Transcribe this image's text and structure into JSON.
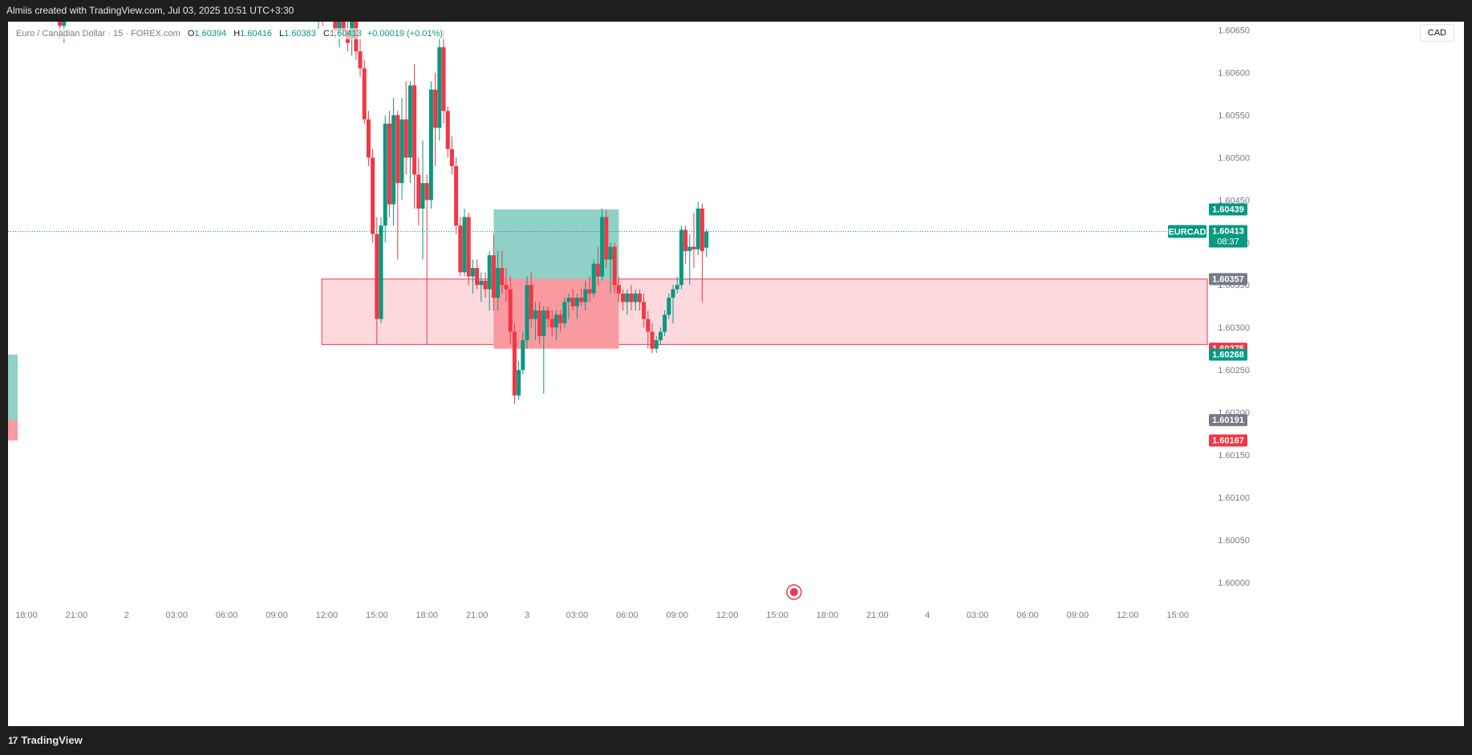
{
  "header": {
    "attribution": "Almiis created with TradingView.com, Jul 03, 2025 10:51 UTC+3:30"
  },
  "footer": {
    "brand": "TradingView",
    "logo_mark": "17"
  },
  "legend": {
    "symbol": "Euro / Canadian Dollar · 15 · FOREX.com",
    "open_label": "O",
    "open": "1.60394",
    "high_label": "H",
    "high": "1.60416",
    "low_label": "L",
    "low": "1.60383",
    "close_label": "C",
    "close": "1.60413",
    "change": "+0.00019 (+0.01%)"
  },
  "currency_button": "CAD",
  "colors": {
    "up": "#089981",
    "down": "#f23645",
    "grid_text": "#787b86",
    "zone_fill": "#fcd9dc",
    "zone_border": "#f23645",
    "profit_fill": "#8fd1c6",
    "loss_fill": "#f99aa1"
  },
  "chart_data": {
    "type": "candlestick",
    "symbol": "EURCAD",
    "timeframe": "15",
    "ylim": [
      1.5998,
      1.6066
    ],
    "y_ticks": [
      "1.60000",
      "1.60050",
      "1.60100",
      "1.60150",
      "1.60200",
      "1.60250",
      "1.60300",
      "1.60350",
      "1.60400",
      "1.60450",
      "1.60500",
      "1.60550",
      "1.60600",
      "1.60650"
    ],
    "x_ticks": [
      {
        "label": "18:00",
        "day": 1,
        "hour": 18
      },
      {
        "label": "21:00",
        "day": 1,
        "hour": 21
      },
      {
        "label": "2",
        "day": 2,
        "hour": 0
      },
      {
        "label": "03:00",
        "day": 2,
        "hour": 3
      },
      {
        "label": "06:00",
        "day": 2,
        "hour": 6
      },
      {
        "label": "09:00",
        "day": 2,
        "hour": 9
      },
      {
        "label": "12:00",
        "day": 2,
        "hour": 12
      },
      {
        "label": "15:00",
        "day": 2,
        "hour": 15
      },
      {
        "label": "18:00",
        "day": 2,
        "hour": 18
      },
      {
        "label": "21:00",
        "day": 2,
        "hour": 21
      },
      {
        "label": "3",
        "day": 3,
        "hour": 0
      },
      {
        "label": "03:00",
        "day": 3,
        "hour": 3
      },
      {
        "label": "06:00",
        "day": 3,
        "hour": 6
      },
      {
        "label": "09:00",
        "day": 3,
        "hour": 9
      },
      {
        "label": "12:00",
        "day": 3,
        "hour": 12
      },
      {
        "label": "15:00",
        "day": 3,
        "hour": 15
      },
      {
        "label": "18:00",
        "day": 3,
        "hour": 18
      },
      {
        "label": "21:00",
        "day": 3,
        "hour": 21
      },
      {
        "label": "4",
        "day": 4,
        "hour": 0
      },
      {
        "label": "03:00",
        "day": 4,
        "hour": 3
      },
      {
        "label": "06:00",
        "day": 4,
        "hour": 6
      },
      {
        "label": "09:00",
        "day": 4,
        "hour": 9
      },
      {
        "label": "12:00",
        "day": 4,
        "hour": 12
      },
      {
        "label": "15:00",
        "day": 4,
        "hour": 15
      }
    ],
    "price_labels": [
      {
        "value": 1.60439,
        "text": "1.60439",
        "kind": "up"
      },
      {
        "value": 1.60413,
        "text": "1.60413",
        "kind": "current",
        "tag": "EURCAD",
        "countdown": "08:37"
      },
      {
        "value": 1.60357,
        "text": "1.60357",
        "kind": "neutral"
      },
      {
        "value": 1.60275,
        "text": "1.60275",
        "kind": "down"
      },
      {
        "value": 1.60268,
        "text": "1.60268",
        "kind": "up"
      },
      {
        "value": 1.60191,
        "text": "1.60191",
        "kind": "neutral"
      },
      {
        "value": 1.60167,
        "text": "1.60167",
        "kind": "down"
      }
    ],
    "current_price": 1.60413,
    "zone": {
      "start": {
        "day": 2,
        "hour": 11.7
      },
      "end": "right-edge",
      "top": 1.60357,
      "bottom": 1.6028
    },
    "position": {
      "start": {
        "day": 2,
        "hour": 22.0
      },
      "end": {
        "day": 3,
        "hour": 5.5
      },
      "entry": 1.60357,
      "target": 1.60439,
      "stop": 1.60275
    },
    "left_position_entry": 1.60191,
    "left_position_target": 1.60268,
    "left_position_stop": 1.60167,
    "event_marker": {
      "day": 3,
      "hour": 16.0
    },
    "candles": [
      {
        "day": 1,
        "hour": 20.0,
        "o": 1.6066,
        "h": 1.6067,
        "l": 1.6064,
        "c": 1.60655
      },
      {
        "day": 1,
        "hour": 20.25,
        "o": 1.60655,
        "h": 1.60665,
        "l": 1.60635,
        "c": 1.6066
      },
      {
        "day": 2,
        "hour": 11.5,
        "o": 1.6067,
        "h": 1.6069,
        "l": 1.6065,
        "c": 1.6068
      },
      {
        "day": 2,
        "hour": 11.75,
        "o": 1.6068,
        "h": 1.6069,
        "l": 1.60655,
        "c": 1.60665
      },
      {
        "day": 2,
        "hour": 12.5,
        "o": 1.60665,
        "h": 1.6068,
        "l": 1.6064,
        "c": 1.6065
      },
      {
        "day": 2,
        "hour": 12.75,
        "o": 1.6065,
        "h": 1.60675,
        "l": 1.6063,
        "c": 1.60665
      },
      {
        "day": 2,
        "hour": 13.0,
        "o": 1.60665,
        "h": 1.6069,
        "l": 1.6064,
        "c": 1.6065
      },
      {
        "day": 2,
        "hour": 13.25,
        "o": 1.6065,
        "h": 1.60665,
        "l": 1.60625,
        "c": 1.60635
      },
      {
        "day": 2,
        "hour": 13.5,
        "o": 1.6064,
        "h": 1.6069,
        "l": 1.6062,
        "c": 1.6067
      },
      {
        "day": 2,
        "hour": 13.75,
        "o": 1.6067,
        "h": 1.6068,
        "l": 1.60615,
        "c": 1.60625
      },
      {
        "day": 2,
        "hour": 14.0,
        "o": 1.60625,
        "h": 1.6064,
        "l": 1.60595,
        "c": 1.60605
      },
      {
        "day": 2,
        "hour": 14.25,
        "o": 1.60605,
        "h": 1.60615,
        "l": 1.6054,
        "c": 1.60545
      },
      {
        "day": 2,
        "hour": 14.5,
        "o": 1.60545,
        "h": 1.60555,
        "l": 1.6049,
        "c": 1.605
      },
      {
        "day": 2,
        "hour": 14.75,
        "o": 1.605,
        "h": 1.6051,
        "l": 1.604,
        "c": 1.6041
      },
      {
        "day": 2,
        "hour": 15.0,
        "o": 1.6041,
        "h": 1.6043,
        "l": 1.6028,
        "c": 1.6031
      },
      {
        "day": 2,
        "hour": 15.25,
        "o": 1.6031,
        "h": 1.6043,
        "l": 1.60305,
        "c": 1.6042
      },
      {
        "day": 2,
        "hour": 15.5,
        "o": 1.6042,
        "h": 1.6055,
        "l": 1.604,
        "c": 1.6054
      },
      {
        "day": 2,
        "hour": 15.75,
        "o": 1.6054,
        "h": 1.60555,
        "l": 1.6043,
        "c": 1.60445
      },
      {
        "day": 2,
        "hour": 16.0,
        "o": 1.60445,
        "h": 1.6057,
        "l": 1.6042,
        "c": 1.6055
      },
      {
        "day": 2,
        "hour": 16.25,
        "o": 1.6055,
        "h": 1.60555,
        "l": 1.6038,
        "c": 1.6047
      },
      {
        "day": 2,
        "hour": 16.5,
        "o": 1.6047,
        "h": 1.6057,
        "l": 1.6045,
        "c": 1.60545
      },
      {
        "day": 2,
        "hour": 16.75,
        "o": 1.60545,
        "h": 1.6059,
        "l": 1.6048,
        "c": 1.605
      },
      {
        "day": 2,
        "hour": 17.0,
        "o": 1.605,
        "h": 1.6059,
        "l": 1.6047,
        "c": 1.60585
      },
      {
        "day": 2,
        "hour": 17.25,
        "o": 1.60585,
        "h": 1.6061,
        "l": 1.6044,
        "c": 1.6048
      },
      {
        "day": 2,
        "hour": 17.5,
        "o": 1.6048,
        "h": 1.605,
        "l": 1.6042,
        "c": 1.6044
      },
      {
        "day": 2,
        "hour": 17.75,
        "o": 1.6044,
        "h": 1.6052,
        "l": 1.6038,
        "c": 1.6047
      },
      {
        "day": 2,
        "hour": 18.0,
        "o": 1.6047,
        "h": 1.6048,
        "l": 1.6028,
        "c": 1.6045
      },
      {
        "day": 2,
        "hour": 18.25,
        "o": 1.6045,
        "h": 1.6059,
        "l": 1.6044,
        "c": 1.6058
      },
      {
        "day": 2,
        "hour": 18.5,
        "o": 1.6058,
        "h": 1.606,
        "l": 1.6049,
        "c": 1.60535
      },
      {
        "day": 2,
        "hour": 18.75,
        "o": 1.60535,
        "h": 1.6064,
        "l": 1.6052,
        "c": 1.6063
      },
      {
        "day": 2,
        "hour": 19.0,
        "o": 1.6063,
        "h": 1.6065,
        "l": 1.6054,
        "c": 1.60555
      },
      {
        "day": 2,
        "hour": 19.25,
        "o": 1.60555,
        "h": 1.6056,
        "l": 1.605,
        "c": 1.6051
      },
      {
        "day": 2,
        "hour": 19.5,
        "o": 1.6051,
        "h": 1.60525,
        "l": 1.6048,
        "c": 1.6049
      },
      {
        "day": 2,
        "hour": 19.75,
        "o": 1.6049,
        "h": 1.605,
        "l": 1.6041,
        "c": 1.6042
      },
      {
        "day": 2,
        "hour": 20.0,
        "o": 1.6042,
        "h": 1.6043,
        "l": 1.6036,
        "c": 1.60365
      },
      {
        "day": 2,
        "hour": 20.25,
        "o": 1.60365,
        "h": 1.6044,
        "l": 1.6036,
        "c": 1.6043
      },
      {
        "day": 2,
        "hour": 20.5,
        "o": 1.6043,
        "h": 1.60435,
        "l": 1.6035,
        "c": 1.6036
      },
      {
        "day": 2,
        "hour": 20.75,
        "o": 1.6036,
        "h": 1.6038,
        "l": 1.6034,
        "c": 1.6037
      },
      {
        "day": 2,
        "hour": 21.0,
        "o": 1.6037,
        "h": 1.6038,
        "l": 1.60345,
        "c": 1.6035
      },
      {
        "day": 2,
        "hour": 21.25,
        "o": 1.6035,
        "h": 1.60365,
        "l": 1.6033,
        "c": 1.60355
      },
      {
        "day": 2,
        "hour": 21.5,
        "o": 1.60355,
        "h": 1.60365,
        "l": 1.60335,
        "c": 1.60345
      },
      {
        "day": 2,
        "hour": 21.75,
        "o": 1.60345,
        "h": 1.6039,
        "l": 1.6032,
        "c": 1.60385
      },
      {
        "day": 2,
        "hour": 22.0,
        "o": 1.60385,
        "h": 1.6041,
        "l": 1.6032,
        "c": 1.60335
      },
      {
        "day": 2,
        "hour": 22.25,
        "o": 1.60335,
        "h": 1.6039,
        "l": 1.6032,
        "c": 1.6037
      },
      {
        "day": 2,
        "hour": 22.5,
        "o": 1.6037,
        "h": 1.6039,
        "l": 1.6034,
        "c": 1.6035
      },
      {
        "day": 2,
        "hour": 22.75,
        "o": 1.6035,
        "h": 1.6037,
        "l": 1.6033,
        "c": 1.60345
      },
      {
        "day": 2,
        "hour": 23.0,
        "o": 1.60345,
        "h": 1.6036,
        "l": 1.6028,
        "c": 1.60295
      },
      {
        "day": 2,
        "hour": 23.25,
        "o": 1.60295,
        "h": 1.60305,
        "l": 1.6021,
        "c": 1.6022
      },
      {
        "day": 2,
        "hour": 23.5,
        "o": 1.6022,
        "h": 1.6026,
        "l": 1.60215,
        "c": 1.6025
      },
      {
        "day": 2,
        "hour": 23.75,
        "o": 1.6025,
        "h": 1.60295,
        "l": 1.60245,
        "c": 1.60285
      },
      {
        "day": 3,
        "hour": 0.0,
        "o": 1.60285,
        "h": 1.6036,
        "l": 1.60275,
        "c": 1.6035
      },
      {
        "day": 3,
        "hour": 0.25,
        "o": 1.6035,
        "h": 1.60365,
        "l": 1.603,
        "c": 1.6031
      },
      {
        "day": 3,
        "hour": 0.5,
        "o": 1.6031,
        "h": 1.6033,
        "l": 1.60285,
        "c": 1.6032
      },
      {
        "day": 3,
        "hour": 0.75,
        "o": 1.6032,
        "h": 1.6033,
        "l": 1.6028,
        "c": 1.6029
      },
      {
        "day": 3,
        "hour": 1.0,
        "o": 1.6029,
        "h": 1.60325,
        "l": 1.60222,
        "c": 1.6032
      },
      {
        "day": 3,
        "hour": 1.25,
        "o": 1.6032,
        "h": 1.60325,
        "l": 1.603,
        "c": 1.6031
      },
      {
        "day": 3,
        "hour": 1.5,
        "o": 1.6031,
        "h": 1.6032,
        "l": 1.6029,
        "c": 1.603
      },
      {
        "day": 3,
        "hour": 1.75,
        "o": 1.603,
        "h": 1.6032,
        "l": 1.60285,
        "c": 1.60315
      },
      {
        "day": 3,
        "hour": 2.0,
        "o": 1.60315,
        "h": 1.6032,
        "l": 1.60295,
        "c": 1.60305
      },
      {
        "day": 3,
        "hour": 2.25,
        "o": 1.60305,
        "h": 1.60335,
        "l": 1.603,
        "c": 1.6033
      },
      {
        "day": 3,
        "hour": 2.5,
        "o": 1.6033,
        "h": 1.6034,
        "l": 1.6031,
        "c": 1.60335
      },
      {
        "day": 3,
        "hour": 2.75,
        "o": 1.60335,
        "h": 1.60345,
        "l": 1.6032,
        "c": 1.60325
      },
      {
        "day": 3,
        "hour": 3.0,
        "o": 1.60325,
        "h": 1.6034,
        "l": 1.6031,
        "c": 1.60335
      },
      {
        "day": 3,
        "hour": 3.25,
        "o": 1.60335,
        "h": 1.60345,
        "l": 1.60325,
        "c": 1.6033
      },
      {
        "day": 3,
        "hour": 3.5,
        "o": 1.6033,
        "h": 1.60355,
        "l": 1.6032,
        "c": 1.60345
      },
      {
        "day": 3,
        "hour": 3.75,
        "o": 1.60345,
        "h": 1.6036,
        "l": 1.6033,
        "c": 1.6034
      },
      {
        "day": 3,
        "hour": 4.0,
        "o": 1.6034,
        "h": 1.6038,
        "l": 1.60335,
        "c": 1.60375
      },
      {
        "day": 3,
        "hour": 4.25,
        "o": 1.60375,
        "h": 1.60395,
        "l": 1.6035,
        "c": 1.6036
      },
      {
        "day": 3,
        "hour": 4.5,
        "o": 1.6036,
        "h": 1.6044,
        "l": 1.60355,
        "c": 1.6043
      },
      {
        "day": 3,
        "hour": 4.75,
        "o": 1.6043,
        "h": 1.60438,
        "l": 1.6037,
        "c": 1.6038
      },
      {
        "day": 3,
        "hour": 5.0,
        "o": 1.6038,
        "h": 1.604,
        "l": 1.6034,
        "c": 1.60395
      },
      {
        "day": 3,
        "hour": 5.25,
        "o": 1.60395,
        "h": 1.604,
        "l": 1.6034,
        "c": 1.6035
      },
      {
        "day": 3,
        "hour": 5.5,
        "o": 1.6035,
        "h": 1.6036,
        "l": 1.6033,
        "c": 1.6034
      },
      {
        "day": 3,
        "hour": 5.75,
        "o": 1.6034,
        "h": 1.60345,
        "l": 1.6032,
        "c": 1.6033
      },
      {
        "day": 3,
        "hour": 6.0,
        "o": 1.6033,
        "h": 1.60345,
        "l": 1.60315,
        "c": 1.6034
      },
      {
        "day": 3,
        "hour": 6.25,
        "o": 1.6034,
        "h": 1.6035,
        "l": 1.6032,
        "c": 1.6033
      },
      {
        "day": 3,
        "hour": 6.5,
        "o": 1.6033,
        "h": 1.60345,
        "l": 1.6032,
        "c": 1.6034
      },
      {
        "day": 3,
        "hour": 6.75,
        "o": 1.6034,
        "h": 1.60345,
        "l": 1.6032,
        "c": 1.6033
      },
      {
        "day": 3,
        "hour": 7.0,
        "o": 1.6033,
        "h": 1.6034,
        "l": 1.603,
        "c": 1.6031
      },
      {
        "day": 3,
        "hour": 7.25,
        "o": 1.6031,
        "h": 1.6032,
        "l": 1.60275,
        "c": 1.60295
      },
      {
        "day": 3,
        "hour": 7.5,
        "o": 1.60295,
        "h": 1.60305,
        "l": 1.6027,
        "c": 1.60275
      },
      {
        "day": 3,
        "hour": 7.75,
        "o": 1.60275,
        "h": 1.6029,
        "l": 1.6027,
        "c": 1.60285
      },
      {
        "day": 3,
        "hour": 8.0,
        "o": 1.60285,
        "h": 1.603,
        "l": 1.6028,
        "c": 1.60295
      },
      {
        "day": 3,
        "hour": 8.25,
        "o": 1.60295,
        "h": 1.6032,
        "l": 1.6029,
        "c": 1.60315
      },
      {
        "day": 3,
        "hour": 8.5,
        "o": 1.60315,
        "h": 1.6034,
        "l": 1.6031,
        "c": 1.60335
      },
      {
        "day": 3,
        "hour": 8.75,
        "o": 1.60335,
        "h": 1.6035,
        "l": 1.60305,
        "c": 1.60345
      },
      {
        "day": 3,
        "hour": 9.0,
        "o": 1.60345,
        "h": 1.6036,
        "l": 1.6034,
        "c": 1.6035
      },
      {
        "day": 3,
        "hour": 9.25,
        "o": 1.6035,
        "h": 1.6042,
        "l": 1.60345,
        "c": 1.60415
      },
      {
        "day": 3,
        "hour": 9.5,
        "o": 1.60415,
        "h": 1.6042,
        "l": 1.60375,
        "c": 1.6039
      },
      {
        "day": 3,
        "hour": 9.75,
        "o": 1.6039,
        "h": 1.6041,
        "l": 1.6035,
        "c": 1.60395
      },
      {
        "day": 3,
        "hour": 10.0,
        "o": 1.60395,
        "h": 1.60435,
        "l": 1.6037,
        "c": 1.60392
      },
      {
        "day": 3,
        "hour": 10.25,
        "o": 1.60392,
        "h": 1.60448,
        "l": 1.60385,
        "c": 1.6044
      },
      {
        "day": 3,
        "hour": 10.5,
        "o": 1.6044,
        "h": 1.60446,
        "l": 1.6033,
        "c": 1.6039
      },
      {
        "day": 3,
        "hour": 10.75,
        "o": 1.60394,
        "h": 1.60416,
        "l": 1.60383,
        "c": 1.60413
      }
    ]
  }
}
